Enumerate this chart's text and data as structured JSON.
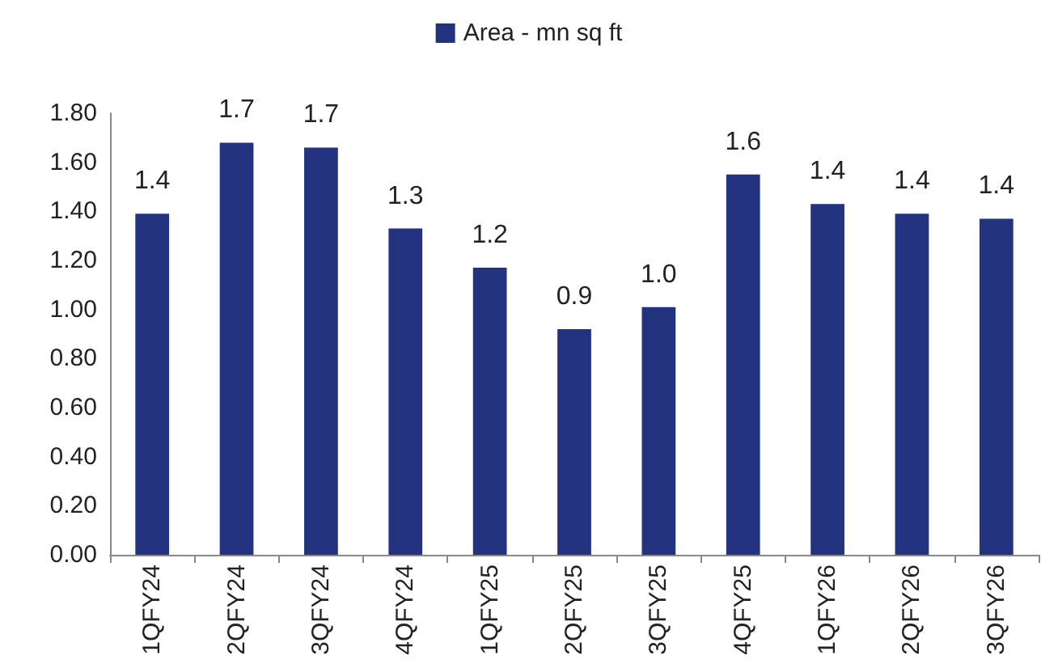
{
  "chart_data": {
    "type": "bar",
    "categories": [
      "1QFY24",
      "2QFY24",
      "3QFY24",
      "4QFY24",
      "1QFY25",
      "2QFY25",
      "3QFY25",
      "4QFY25",
      "1QFY26",
      "2QFY26",
      "3QFY26"
    ],
    "series": [
      {
        "name": "Area - mn sq ft",
        "color": "#233380",
        "values": [
          1.39,
          1.68,
          1.66,
          1.33,
          1.17,
          0.92,
          1.01,
          1.55,
          1.43,
          1.39,
          1.37
        ],
        "value_labels": [
          "1.4",
          "1.7",
          "1.7",
          "1.3",
          "1.2",
          "0.9",
          "1.0",
          "1.6",
          "1.4",
          "1.4",
          "1.4"
        ]
      }
    ],
    "ylim": [
      0,
      1.8
    ],
    "yticks": [
      "0.00",
      "0.20",
      "0.40",
      "0.60",
      "0.80",
      "1.00",
      "1.20",
      "1.40",
      "1.60",
      "1.80"
    ],
    "grid": false,
    "legend": "top"
  }
}
